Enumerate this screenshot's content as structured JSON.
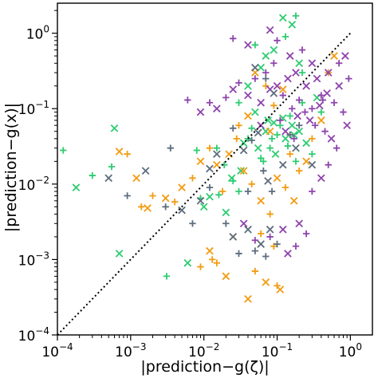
{
  "chart_data": {
    "type": "scatter",
    "xlabel": "|prediction−g(ζ)|",
    "ylabel": "|prediction−g(x)|",
    "x_scale": "log",
    "y_scale": "log",
    "xlim": [
      0.0001,
      2
    ],
    "ylim": [
      0.0001,
      2.5
    ],
    "x_ticks": [
      {
        "value": 0.0001,
        "base": "10",
        "exp": "−4"
      },
      {
        "value": 0.001,
        "base": "10",
        "exp": "−3"
      },
      {
        "value": 0.01,
        "base": "10",
        "exp": "−2"
      },
      {
        "value": 0.1,
        "base": "10",
        "exp": "−1"
      },
      {
        "value": 1,
        "base": "10",
        "exp": "0"
      }
    ],
    "y_ticks": [
      {
        "value": 0.0001,
        "base": "10",
        "exp": "−4"
      },
      {
        "value": 0.001,
        "base": "10",
        "exp": "−3"
      },
      {
        "value": 0.01,
        "base": "10",
        "exp": "−2"
      },
      {
        "value": 0.1,
        "base": "10",
        "exp": "−1"
      },
      {
        "value": 1,
        "base": "10",
        "exp": "0"
      }
    ],
    "grid": false,
    "legend": "none",
    "reference_line": {
      "style": "dotted",
      "color": "#000000",
      "points": [
        [
          0.0001,
          0.0001
        ],
        [
          1,
          1
        ]
      ]
    },
    "marker_types": [
      "plus",
      "x"
    ],
    "series": [
      {
        "color": "#2ecc71",
        "points": [
          [
            0.00012,
            0.028
          ],
          [
            0.00018,
            0.009
          ],
          [
            0.0003,
            0.013
          ],
          [
            0.0006,
            0.055
          ],
          [
            0.00055,
            0.017
          ],
          [
            0.0007,
            0.0012
          ],
          [
            0.0031,
            0.0006
          ],
          [
            0.006,
            0.0009
          ],
          [
            0.008,
            0.028
          ],
          [
            0.012,
            0.0068
          ],
          [
            0.016,
            0.0072
          ],
          [
            0.02,
            0.0042
          ],
          [
            0.025,
            0.011
          ],
          [
            0.032,
            0.015
          ],
          [
            0.04,
            0.04
          ],
          [
            0.05,
            0.09
          ],
          [
            0.06,
            0.022
          ],
          [
            0.07,
            0.05
          ],
          [
            0.08,
            0.03
          ],
          [
            0.09,
            0.065
          ],
          [
            0.1,
            0.045
          ],
          [
            0.12,
            0.075
          ],
          [
            0.14,
            0.032
          ],
          [
            0.16,
            0.06
          ],
          [
            0.18,
            0.02
          ],
          [
            0.2,
            0.05
          ],
          [
            0.22,
            0.12
          ],
          [
            0.25,
            0.035
          ],
          [
            0.3,
            0.025
          ],
          [
            0.035,
            0.035
          ],
          [
            0.045,
            0.055
          ],
          [
            0.055,
            0.03
          ],
          [
            0.065,
            0.02
          ],
          [
            0.075,
            0.07
          ],
          [
            0.085,
            0.04
          ],
          [
            0.095,
            0.025
          ],
          [
            0.11,
            0.06
          ],
          [
            0.13,
            0.04
          ],
          [
            0.15,
            0.08
          ],
          [
            0.17,
            0.045
          ],
          [
            0.019,
            0.018
          ],
          [
            0.024,
            0.012
          ],
          [
            0.03,
            0.008
          ],
          [
            0.01,
            0.005
          ],
          [
            0.009,
            0.0065
          ],
          [
            0.07,
            0.5
          ],
          [
            0.05,
            0.7
          ],
          [
            0.09,
            0.6
          ],
          [
            0.13,
            0.9
          ],
          [
            0.16,
            1.3
          ],
          [
            0.18,
            1.7
          ],
          [
            0.12,
            1.6
          ],
          [
            0.22,
            0.3
          ],
          [
            0.35,
            0.14
          ],
          [
            0.4,
            0.09
          ],
          [
            0.04,
            0.2
          ],
          [
            0.03,
            0.12
          ],
          [
            0.06,
            0.35
          ],
          [
            0.015,
            0.03
          ],
          [
            0.2,
            0.4
          ]
        ]
      },
      {
        "color": "#f39c12",
        "points": [
          [
            0.0007,
            0.027
          ],
          [
            0.0009,
            0.025
          ],
          [
            0.0012,
            0.012
          ],
          [
            0.0014,
            0.005
          ],
          [
            0.0017,
            0.0048
          ],
          [
            0.002,
            0.007
          ],
          [
            0.003,
            0.0065
          ],
          [
            0.004,
            0.0058
          ],
          [
            0.005,
            0.009
          ],
          [
            0.007,
            0.012
          ],
          [
            0.009,
            0.02
          ],
          [
            0.012,
            0.03
          ],
          [
            0.015,
            0.018
          ],
          [
            0.018,
            0.008
          ],
          [
            0.022,
            0.025
          ],
          [
            0.028,
            0.04
          ],
          [
            0.035,
            0.015
          ],
          [
            0.045,
            0.01
          ],
          [
            0.06,
            0.006
          ],
          [
            0.08,
            0.004
          ],
          [
            0.1,
            0.012
          ],
          [
            0.13,
            0.009
          ],
          [
            0.17,
            0.006
          ],
          [
            0.2,
            0.015
          ],
          [
            0.25,
            0.02
          ],
          [
            0.3,
            0.04
          ],
          [
            0.4,
            0.07
          ],
          [
            0.5,
            0.3
          ],
          [
            0.6,
            0.5
          ],
          [
            0.07,
            0.2
          ],
          [
            0.05,
            0.3
          ],
          [
            0.03,
            0.06
          ],
          [
            0.04,
            0.08
          ],
          [
            0.009,
            0.0008
          ],
          [
            0.012,
            0.0013
          ],
          [
            0.015,
            0.0009
          ],
          [
            0.02,
            0.0006
          ],
          [
            0.05,
            0.0007
          ],
          [
            0.07,
            0.0005
          ],
          [
            0.1,
            0.00045
          ],
          [
            0.04,
            0.0003
          ],
          [
            0.09,
            0.0015
          ],
          [
            0.11,
            0.0004
          ],
          [
            0.013,
            0.001
          ],
          [
            0.025,
            0.002
          ],
          [
            0.06,
            0.0022
          ],
          [
            0.08,
            0.05
          ],
          [
            0.15,
            0.025
          ],
          [
            0.12,
            0.18
          ],
          [
            0.09,
            0.11
          ]
        ]
      },
      {
        "color": "#8e44ad",
        "points": [
          [
            0.006,
            0.13
          ],
          [
            0.009,
            0.09
          ],
          [
            0.012,
            0.12
          ],
          [
            0.015,
            0.1
          ],
          [
            0.02,
            0.14
          ],
          [
            0.025,
            0.18
          ],
          [
            0.03,
            0.22
          ],
          [
            0.04,
            0.15
          ],
          [
            0.05,
            0.25
          ],
          [
            0.06,
            0.12
          ],
          [
            0.07,
            0.3
          ],
          [
            0.08,
            0.18
          ],
          [
            0.09,
            0.4
          ],
          [
            0.1,
            0.2
          ],
          [
            0.12,
            0.15
          ],
          [
            0.14,
            0.25
          ],
          [
            0.16,
            0.1
          ],
          [
            0.18,
            0.3
          ],
          [
            0.2,
            0.13
          ],
          [
            0.25,
            0.2
          ],
          [
            0.3,
            0.1
          ],
          [
            0.35,
            0.25
          ],
          [
            0.4,
            0.15
          ],
          [
            0.5,
            0.3
          ],
          [
            0.6,
            0.12
          ],
          [
            0.7,
            0.2
          ],
          [
            0.8,
            0.09
          ],
          [
            0.9,
            0.06
          ],
          [
            0.45,
            0.05
          ],
          [
            0.55,
            0.04
          ],
          [
            0.65,
            0.03
          ],
          [
            0.3,
            0.4
          ],
          [
            0.22,
            0.6
          ],
          [
            0.04,
            0.7
          ],
          [
            0.025,
            0.85
          ],
          [
            0.08,
            1.1
          ],
          [
            0.1,
            0.8
          ],
          [
            0.15,
            0.5
          ],
          [
            0.08,
            0.002
          ],
          [
            0.12,
            0.0025
          ],
          [
            0.18,
            0.0015
          ],
          [
            0.2,
            0.003
          ],
          [
            0.05,
            0.0018
          ],
          [
            0.035,
            0.003
          ],
          [
            0.25,
            0.0022
          ],
          [
            0.14,
            0.0012
          ],
          [
            0.3,
            0.008
          ],
          [
            0.4,
            0.012
          ],
          [
            0.5,
            0.018
          ],
          [
            0.06,
            0.06
          ],
          [
            0.11,
            0.07
          ],
          [
            0.13,
            0.05
          ],
          [
            0.17,
            0.04
          ],
          [
            0.19,
            0.08
          ],
          [
            0.24,
            0.09
          ],
          [
            0.28,
            0.07
          ],
          [
            0.33,
            0.06
          ],
          [
            0.38,
            0.11
          ],
          [
            0.42,
            0.13
          ],
          [
            0.48,
            0.16
          ],
          [
            0.7,
            0.4
          ],
          [
            0.85,
            0.5
          ],
          [
            0.95,
            0.25
          ]
        ]
      },
      {
        "color": "#5d6d7e",
        "points": [
          [
            0.0005,
            0.012
          ],
          [
            0.0009,
            0.007
          ],
          [
            0.0016,
            0.015
          ],
          [
            0.003,
            0.005
          ],
          [
            0.005,
            0.0045
          ],
          [
            0.007,
            0.003
          ],
          [
            0.009,
            0.006
          ],
          [
            0.012,
            0.009
          ],
          [
            0.015,
            0.025
          ],
          [
            0.02,
            0.003
          ],
          [
            0.025,
            0.002
          ],
          [
            0.03,
            0.0012
          ],
          [
            0.04,
            0.0025
          ],
          [
            0.05,
            0.0013
          ],
          [
            0.06,
            0.0016
          ],
          [
            0.07,
            0.0011
          ],
          [
            0.08,
            0.0025
          ],
          [
            0.1,
            0.0016
          ],
          [
            0.12,
            0.018
          ],
          [
            0.15,
            0.045
          ],
          [
            0.18,
            0.03
          ],
          [
            0.2,
            0.06
          ],
          [
            0.3,
            0.018
          ],
          [
            0.025,
            0.055
          ],
          [
            0.035,
            0.028
          ],
          [
            0.045,
            0.038
          ],
          [
            0.055,
            0.048
          ],
          [
            0.065,
            0.015
          ],
          [
            0.075,
            0.011
          ],
          [
            0.085,
            0.008
          ],
          [
            0.05,
            0.35
          ],
          [
            0.07,
            0.25
          ],
          [
            0.09,
            0.16
          ],
          [
            0.04,
            0.008
          ],
          [
            0.012,
            0.016
          ],
          [
            0.0035,
            0.03
          ]
        ]
      }
    ]
  }
}
